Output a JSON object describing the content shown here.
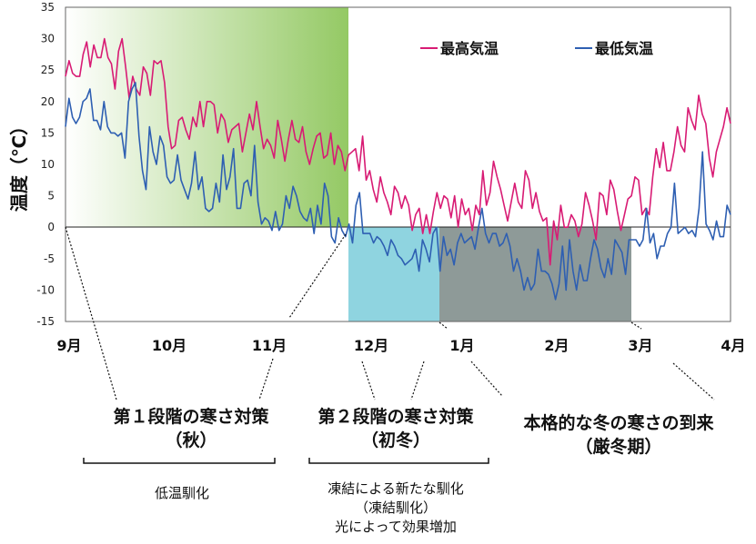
{
  "chart_data": {
    "type": "line",
    "ylabel": "温度（℃）",
    "ylim": [
      -15,
      35
    ],
    "yticks": [
      35,
      30,
      25,
      20,
      15,
      10,
      5,
      0,
      -5,
      -10,
      -15
    ],
    "month_labels": [
      "9月",
      "10月",
      "11月",
      "12月",
      "1月",
      "2月",
      "3月",
      "4月"
    ],
    "series": [
      {
        "name": "最高気温",
        "color": "#d81b74",
        "values": [
          24,
          26.5,
          24.5,
          24,
          24,
          27.5,
          29.5,
          25.5,
          29,
          27,
          27,
          30,
          27,
          26,
          22,
          28,
          30,
          25.5,
          20.5,
          24,
          22,
          21,
          25.5,
          24.5,
          21,
          26.5,
          26,
          26.5,
          23,
          16,
          12.5,
          13,
          17,
          17.5,
          15.5,
          14,
          17.5,
          16,
          20,
          16,
          20,
          20,
          19.5,
          15,
          18,
          17,
          13.5,
          15.5,
          16,
          16.5,
          12,
          15,
          18,
          15.5,
          20,
          16,
          12.5,
          14,
          13,
          11,
          17,
          14,
          10.5,
          14,
          17,
          14,
          13.5,
          16,
          12,
          10,
          12.5,
          14.5,
          15,
          11,
          11.5,
          15,
          10,
          13,
          12,
          9,
          11.5,
          12,
          12.5,
          9,
          14.5,
          7.5,
          9,
          6,
          4,
          8,
          5.5,
          4,
          2,
          6.5,
          5.5,
          3,
          5,
          3.5,
          -0.5,
          2,
          3,
          -1,
          2,
          -1,
          2.5,
          5.5,
          3,
          5,
          4.5,
          1.5,
          5,
          0,
          4.5,
          2,
          3,
          -0.5,
          3.5,
          2,
          9,
          3.5,
          5.5,
          10.5,
          8,
          6,
          3.5,
          1,
          4,
          7,
          4,
          3,
          9,
          7.5,
          3,
          5.5,
          2.5,
          1,
          1.5,
          -6,
          1,
          -2,
          3.5,
          0,
          0,
          2,
          1,
          -1.5,
          0.5,
          5.5,
          3.5,
          1,
          -2,
          5.5,
          5,
          2,
          7.5,
          6,
          2.5,
          -0.5,
          2,
          4.5,
          5,
          8,
          7.5,
          2,
          3,
          2,
          8,
          12.5,
          9.5,
          13.5,
          9,
          9,
          12,
          16,
          13,
          12,
          19,
          17,
          15.5,
          21,
          18,
          16.5,
          11,
          8,
          12,
          14,
          16,
          19,
          16.5
        ]
      },
      {
        "name": "最低気温",
        "color": "#2e5fb2",
        "values": [
          16,
          20.5,
          17.5,
          16.5,
          17.5,
          20,
          20.5,
          22,
          17,
          17,
          15.5,
          20,
          16,
          15,
          15,
          14.5,
          15,
          11,
          20,
          22,
          23,
          14.5,
          9,
          6,
          16,
          12,
          10,
          14.5,
          13,
          8,
          7,
          7.5,
          11.5,
          7.5,
          6,
          4.5,
          7,
          12,
          6,
          8,
          3,
          2.5,
          3,
          7,
          4,
          11.5,
          6,
          8,
          12.5,
          3,
          3,
          7,
          7.5,
          5,
          13,
          4,
          0.5,
          1.5,
          1,
          -0.5,
          2.5,
          -0.5,
          0.5,
          5,
          3,
          6.5,
          5,
          2.5,
          1.5,
          1,
          3,
          -1,
          3.5,
          0.5,
          7,
          5,
          -1.5,
          -2.5,
          1.5,
          -0.5,
          -1.5,
          0.5,
          -2.5,
          3.5,
          5.5,
          -1,
          -1,
          -1,
          -2.5,
          -1.5,
          -2,
          -3,
          -4.5,
          -2,
          -3,
          -4.5,
          -5,
          -6,
          -5.5,
          -5,
          -3.5,
          -7,
          -2,
          -3.5,
          -5.5,
          -1,
          0,
          -7,
          -1.5,
          -4.5,
          -3.5,
          -6,
          -2.5,
          -1,
          -2.5,
          -2,
          -1.5,
          -3.5,
          0,
          3,
          -1,
          -2.5,
          -1,
          -1,
          -3,
          -2.5,
          -1,
          -3,
          -7,
          -5,
          -7,
          -10,
          -8,
          -10,
          -9,
          -3.5,
          -7,
          -7,
          -7.5,
          -9,
          -11.5,
          -9,
          -3,
          -10,
          -2,
          -7,
          -10,
          -6,
          -8.5,
          -8.5,
          -5,
          -2,
          -3.5,
          -6.5,
          -8,
          -5,
          -7.5,
          -2,
          -3,
          -4,
          -7.5,
          -2,
          -2,
          -2,
          -3,
          -2,
          3,
          -2.5,
          -1,
          -5,
          -3,
          -3,
          -1,
          0,
          7,
          -1,
          -0.5,
          0,
          -1,
          -0.5,
          -1.5,
          3,
          12,
          0.5,
          -0.5,
          -2,
          1,
          -1.5,
          -1.5,
          3.5,
          2
        ]
      }
    ],
    "periods": [
      {
        "label": "第１段階の寒さ対策\n（秋）"
      },
      {
        "label": "第２段階の寒さ対策\n（初冬）"
      },
      {
        "label": "本格的な冬の寒さの到来\n（厳冬期）"
      }
    ],
    "notes": [
      "低温馴化",
      "凍結による新たな馴化\n（凍結馴化）\n光によって効果増加"
    ],
    "colors": {
      "autumn_gradient_end": "#94c964",
      "early_winter": "#8fd4e0",
      "deep_winter": "#8e9a98"
    }
  }
}
